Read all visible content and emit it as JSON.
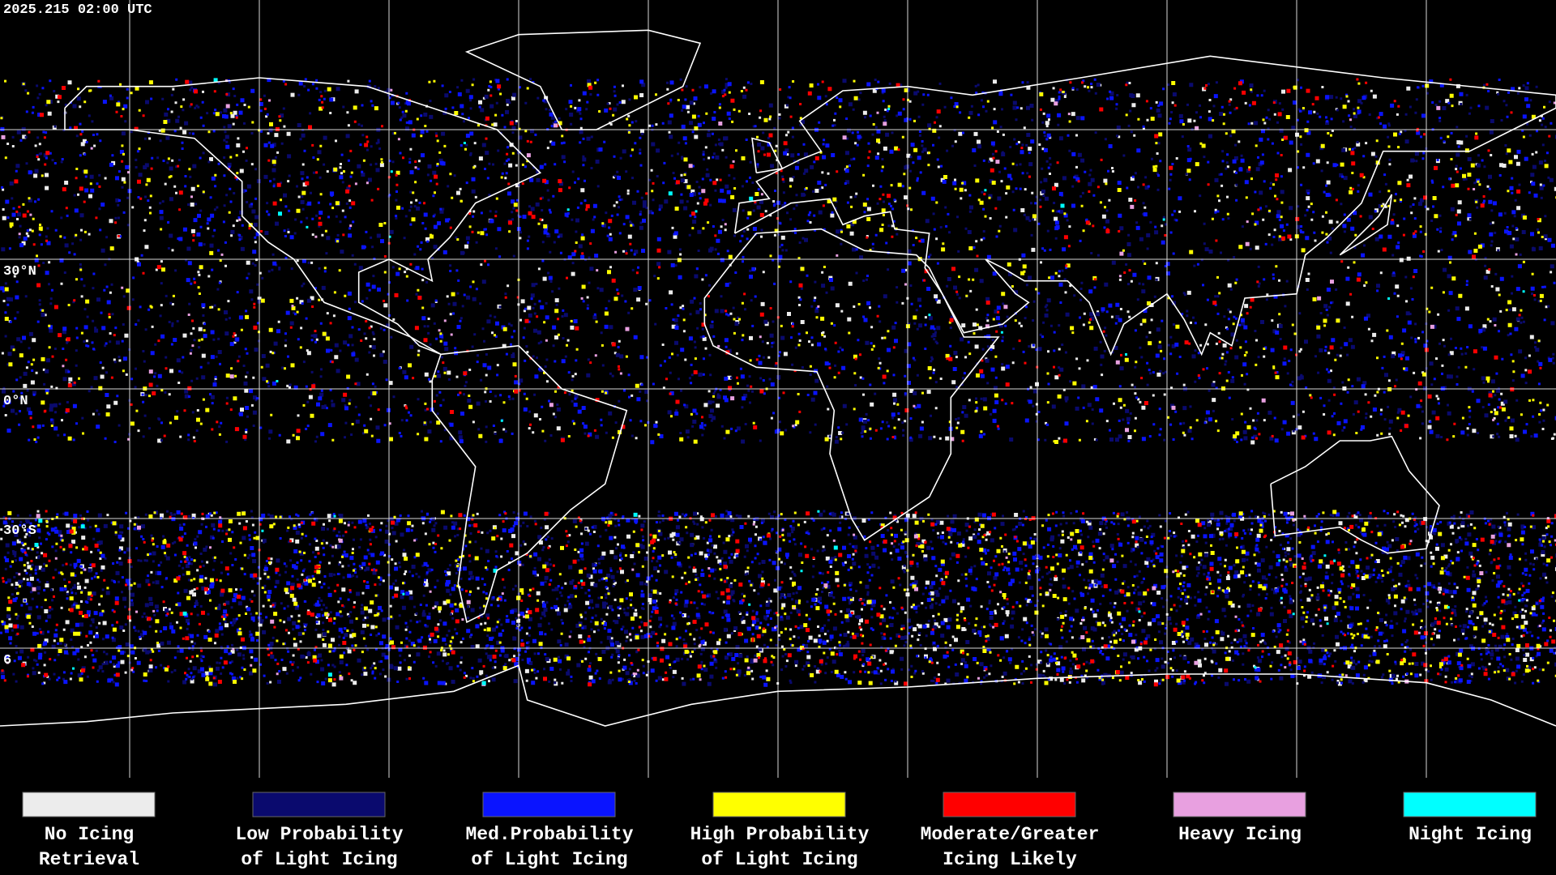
{
  "timestamp": "2025.215 02:00 UTC",
  "lat_labels": [
    "30°N",
    "0°N",
    "30°S",
    "6"
  ],
  "legend": [
    {
      "color": "#ececec",
      "lines": [
        "No Icing",
        "Retrieval"
      ]
    },
    {
      "color": "#0a0a6e",
      "lines": [
        "Low Probability",
        "of Light Icing"
      ]
    },
    {
      "color": "#0a14ff",
      "lines": [
        "Med.Probability",
        "of Light Icing"
      ]
    },
    {
      "color": "#ffff00",
      "lines": [
        "High Probability",
        "of Light Icing"
      ]
    },
    {
      "color": "#ff0000",
      "lines": [
        "Moderate/Greater",
        "Icing Likely"
      ]
    },
    {
      "color": "#e8a0e0",
      "lines": [
        "Heavy Icing"
      ]
    },
    {
      "color": "#00ffff",
      "lines": [
        "Night Icing"
      ]
    }
  ]
}
